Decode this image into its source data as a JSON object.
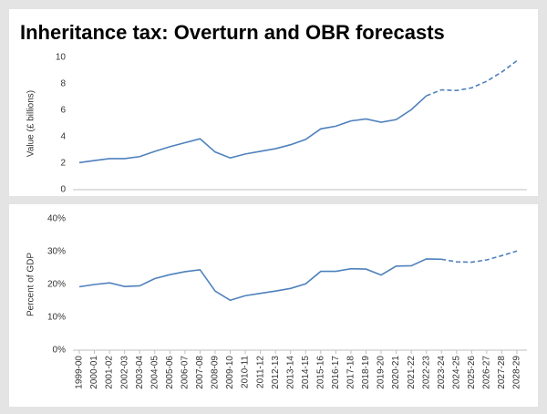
{
  "title": "Inheritance tax: Overturn and OBR forecasts",
  "chart_data": [
    {
      "type": "line",
      "ylabel": "Value (£ billions)",
      "ylim": [
        0,
        10
      ],
      "yticks": [
        0,
        2,
        4,
        6,
        8,
        10
      ],
      "series": [
        {
          "color": "#4f81bd",
          "dash": false,
          "values": [
            2.05,
            2.2,
            2.35,
            2.35,
            2.5,
            2.9,
            3.25,
            3.55,
            3.85,
            2.85,
            2.4,
            2.7,
            2.9,
            3.1,
            3.4,
            3.8,
            4.6,
            4.8,
            5.2,
            5.35,
            5.1,
            5.3,
            6.05,
            7.1,
            null,
            null,
            null,
            null,
            null,
            null
          ]
        },
        {
          "color": "#4f81bd",
          "dash": true,
          "values": [
            null,
            null,
            null,
            null,
            null,
            null,
            null,
            null,
            null,
            null,
            null,
            null,
            null,
            null,
            null,
            null,
            null,
            null,
            null,
            null,
            null,
            null,
            null,
            7.1,
            7.55,
            7.5,
            7.7,
            8.2,
            8.9,
            9.75
          ]
        }
      ]
    },
    {
      "type": "line",
      "ylabel": "Percent of GDP",
      "ylim": [
        0,
        40
      ],
      "yticks": [
        {
          "value": 0,
          "label": "0%"
        },
        {
          "value": 10,
          "label": "10%"
        },
        {
          "value": 20,
          "label": "20%"
        },
        {
          "value": 30,
          "label": "30%"
        },
        {
          "value": 40,
          "label": "40%"
        }
      ],
      "categories": [
        "1999-00",
        "2000-01",
        "2001-02",
        "2002-03",
        "2003-04",
        "2004-05",
        "2005-06",
        "2006-07",
        "2007-08",
        "2008-09",
        "2009-10",
        "2010-11",
        "2011-12",
        "2012-13",
        "2013-14",
        "2014-15",
        "2015-16",
        "2016-17",
        "2017-18",
        "2018-19",
        "2019-20",
        "2020-21",
        "2021-22",
        "2022-23",
        "2023-24",
        "2024-25",
        "2025-26",
        "2026-27",
        "2027-28",
        "2028-29"
      ],
      "series": [
        {
          "color": "#4f81bd",
          "dash": false,
          "values": [
            19.3,
            20.0,
            20.5,
            19.4,
            19.6,
            21.8,
            23.0,
            23.9,
            24.5,
            18.0,
            15.2,
            16.6,
            17.3,
            18.0,
            18.8,
            20.2,
            24.0,
            24.0,
            24.8,
            24.7,
            22.9,
            25.6,
            25.7,
            27.8,
            27.7,
            null,
            null,
            null,
            null,
            null
          ]
        },
        {
          "color": "#4f81bd",
          "dash": true,
          "values": [
            null,
            null,
            null,
            null,
            null,
            null,
            null,
            null,
            null,
            null,
            null,
            null,
            null,
            null,
            null,
            null,
            null,
            null,
            null,
            null,
            null,
            null,
            null,
            null,
            27.7,
            26.9,
            26.8,
            27.5,
            28.8,
            30.2
          ]
        }
      ]
    }
  ]
}
